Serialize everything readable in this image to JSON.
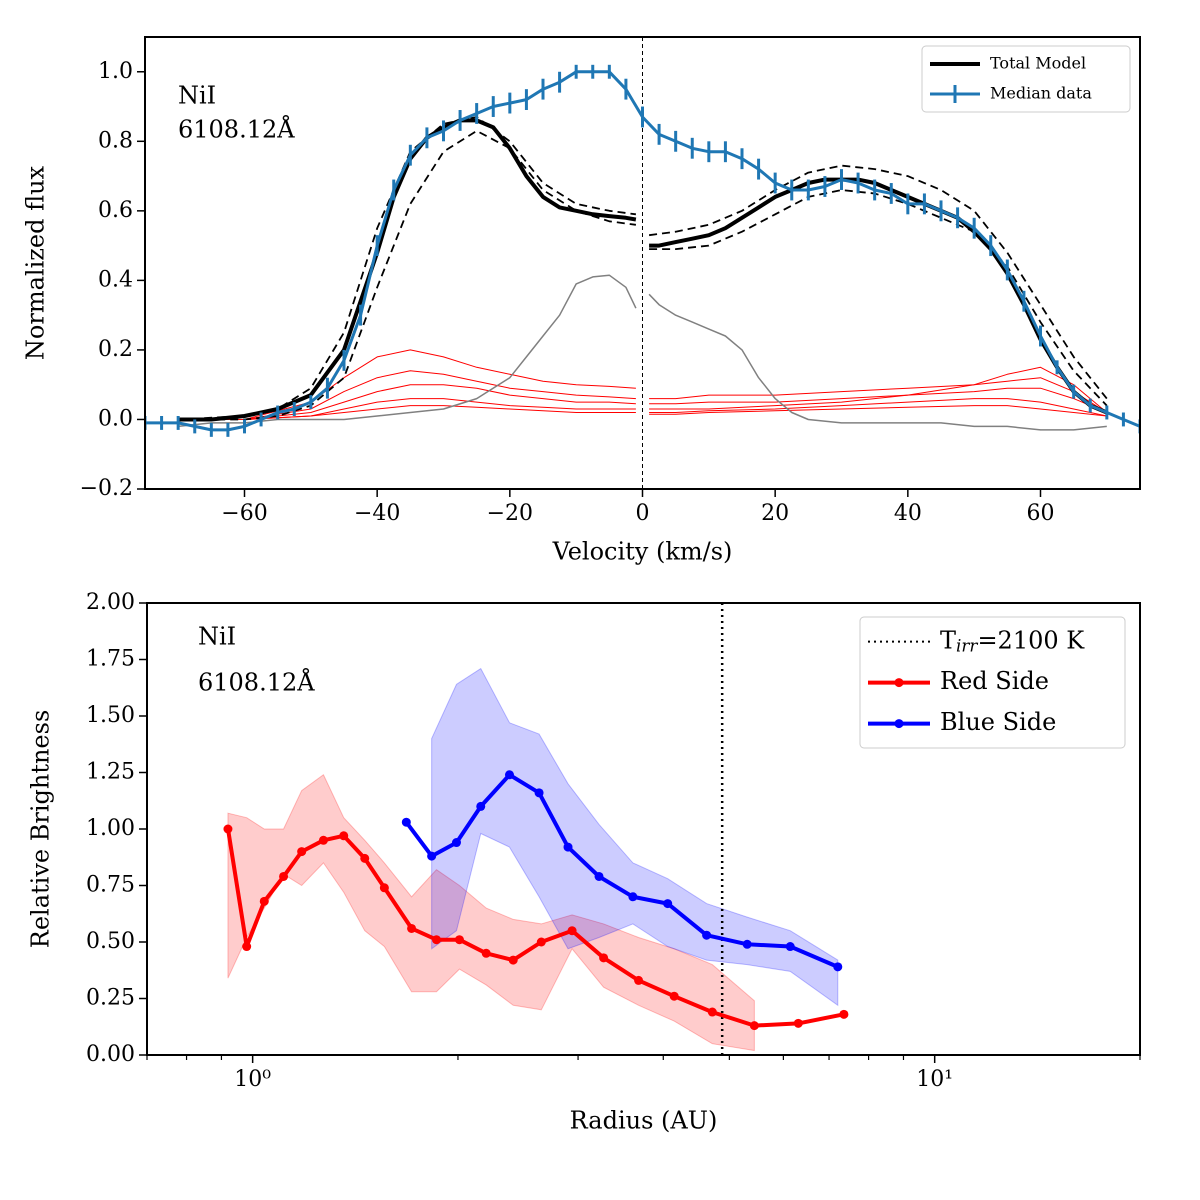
{
  "chart_data": [
    {
      "type": "line",
      "xlabel": "Velocity (km/s)",
      "ylabel": "Normalized flux",
      "annotation": [
        "NiI",
        "6108.12Å"
      ],
      "xlim": [
        -75,
        75
      ],
      "ylim": [
        -0.2,
        1.1
      ],
      "xticks": [
        {
          "value": -60,
          "label": "−60"
        },
        {
          "value": -40,
          "label": "−40"
        },
        {
          "value": -20,
          "label": "−20"
        },
        0,
        20,
        40,
        60
      ],
      "yticks": [
        {
          "value": -0.2,
          "label": "−0.2"
        },
        {
          "value": 0,
          "label": "0.0"
        },
        0.2,
        0.4,
        0.6,
        0.8,
        {
          "value": 1,
          "label": "1.0"
        }
      ],
      "vlines": [
        {
          "x": 0,
          "style": "dashed"
        }
      ],
      "legend": "upper right",
      "x": [
        -75,
        -72.5,
        -70,
        -67.5,
        -65,
        -62.5,
        -60,
        -57.5,
        -55,
        -52.5,
        -50,
        -47.5,
        -45,
        -42.5,
        -40,
        -37.5,
        -35,
        -32.5,
        -30,
        -27.5,
        -25,
        -22.5,
        -20,
        -17.5,
        -15,
        -12.5,
        -10,
        -7.5,
        -5,
        -2.5,
        0,
        2.5,
        5,
        7.5,
        10,
        12.5,
        15,
        17.5,
        20,
        22.5,
        25,
        27.5,
        30,
        32.5,
        35,
        37.5,
        40,
        42.5,
        45,
        47.5,
        50,
        52.5,
        55,
        57.5,
        60,
        62.5,
        65,
        67.5,
        70,
        72.5,
        75
      ],
      "series": [
        {
          "color": "#ff0000",
          "width": 1,
          "x": [
            -70,
            -60,
            -50,
            -45,
            -40,
            -35,
            -30,
            -25,
            -20,
            -15,
            -10,
            -5,
            -1,
            0,
            1,
            5,
            10,
            20,
            30,
            40,
            50,
            55,
            60,
            65,
            70
          ],
          "values": [
            0,
            0,
            0.05,
            0.12,
            0.18,
            0.2,
            0.18,
            0.15,
            0.13,
            0.11,
            0.1,
            0.095,
            0.09,
            null,
            0.03,
            0.03,
            0.03,
            0.04,
            0.05,
            0.07,
            0.1,
            0.13,
            0.15,
            0.1,
            0.02
          ]
        },
        {
          "color": "#ff0000",
          "width": 1,
          "x": [
            -70,
            -60,
            -50,
            -45,
            -40,
            -35,
            -30,
            -25,
            -20,
            -15,
            -10,
            -5,
            -1,
            0,
            1,
            5,
            10,
            20,
            30,
            40,
            50,
            55,
            60,
            65,
            70
          ],
          "values": [
            0,
            0,
            0.03,
            0.08,
            0.12,
            0.14,
            0.13,
            0.11,
            0.09,
            0.08,
            0.07,
            0.065,
            0.06,
            null,
            0.06,
            0.06,
            0.07,
            0.07,
            0.08,
            0.09,
            0.1,
            0.11,
            0.12,
            0.08,
            0.02
          ]
        },
        {
          "color": "#ff0000",
          "width": 1,
          "x": [
            -70,
            -60,
            -50,
            -45,
            -40,
            -35,
            -30,
            -25,
            -20,
            -15,
            -10,
            -5,
            -1,
            0,
            1,
            5,
            10,
            20,
            30,
            40,
            50,
            55,
            60,
            65,
            70
          ],
          "values": [
            0,
            0,
            0.02,
            0.05,
            0.08,
            0.1,
            0.1,
            0.09,
            0.07,
            0.06,
            0.05,
            0.05,
            0.045,
            null,
            0.045,
            0.045,
            0.05,
            0.05,
            0.06,
            0.07,
            0.08,
            0.09,
            0.09,
            0.06,
            0.02
          ]
        },
        {
          "color": "#ff0000",
          "width": 1,
          "x": [
            -70,
            -60,
            -50,
            -45,
            -40,
            -35,
            -30,
            -25,
            -20,
            -15,
            -10,
            -5,
            -1,
            0,
            1,
            5,
            10,
            20,
            30,
            40,
            50,
            55,
            60,
            65,
            70
          ],
          "values": [
            0,
            0,
            0.01,
            0.03,
            0.05,
            0.06,
            0.06,
            0.05,
            0.04,
            0.035,
            0.03,
            0.03,
            0.03,
            null,
            0.02,
            0.02,
            0.025,
            0.03,
            0.04,
            0.05,
            0.06,
            0.06,
            0.05,
            0.03,
            0.01
          ]
        },
        {
          "color": "#ff0000",
          "width": 1,
          "x": [
            -70,
            -60,
            -50,
            -45,
            -40,
            -35,
            -30,
            -25,
            -20,
            -15,
            -10,
            -5,
            -1,
            0,
            1,
            5,
            10,
            20,
            30,
            40,
            50,
            55,
            60,
            65,
            70
          ],
          "values": [
            0,
            0,
            0.01,
            0.02,
            0.03,
            0.04,
            0.04,
            0.035,
            0.03,
            0.025,
            0.02,
            0.02,
            0.02,
            null,
            0.015,
            0.015,
            0.02,
            0.025,
            0.03,
            0.035,
            0.04,
            0.04,
            0.03,
            0.02,
            0.01
          ]
        },
        {
          "color": "#808080",
          "width": 1.5,
          "x": [
            -70,
            -65,
            -60,
            -55,
            -50,
            -45,
            -40,
            -35,
            -30,
            -25,
            -20,
            -17.5,
            -15,
            -12.5,
            -10,
            -7.5,
            -5,
            -2.5,
            -1,
            0,
            1,
            2.5,
            5,
            7.5,
            10,
            12.5,
            15,
            17.5,
            20,
            22.5,
            25,
            30,
            35,
            40,
            45,
            50,
            55,
            60,
            65,
            70
          ],
          "values": [
            -0.02,
            -0.01,
            -0.01,
            0,
            0,
            0,
            0.01,
            0.02,
            0.03,
            0.06,
            0.12,
            0.18,
            0.24,
            0.3,
            0.39,
            0.41,
            0.415,
            0.38,
            0.32,
            null,
            0.36,
            0.33,
            0.3,
            0.28,
            0.26,
            0.24,
            0.2,
            0.12,
            0.06,
            0.02,
            0,
            -0.01,
            -0.01,
            -0.01,
            -0.01,
            -0.02,
            -0.02,
            -0.03,
            -0.03,
            -0.02
          ]
        },
        {
          "color": "#000000",
          "width": 1.8,
          "style": "dashed",
          "x": [
            -70,
            -60,
            -55,
            -50,
            -45,
            -40,
            -35,
            -30,
            -25,
            -20,
            -15,
            -10,
            -5,
            -1,
            0,
            1,
            5,
            10,
            15,
            20,
            25,
            30,
            35,
            40,
            45,
            50,
            55,
            60,
            65,
            70
          ],
          "values": [
            0,
            0.01,
            0.03,
            0.09,
            0.25,
            0.55,
            0.77,
            0.85,
            0.87,
            0.8,
            0.68,
            0.62,
            0.6,
            0.59,
            null,
            0.53,
            0.54,
            0.56,
            0.6,
            0.66,
            0.71,
            0.73,
            0.72,
            0.7,
            0.66,
            0.6,
            0.48,
            0.33,
            0.18,
            0.06
          ]
        },
        {
          "color": "#000000",
          "width": 1.8,
          "style": "dashed",
          "x": [
            -70,
            -60,
            -55,
            -50,
            -45,
            -40,
            -35,
            -30,
            -25,
            -20,
            -15,
            -10,
            -5,
            -1,
            0,
            1,
            5,
            10,
            15,
            20,
            25,
            30,
            35,
            40,
            45,
            50,
            55,
            60,
            65,
            70
          ],
          "values": [
            0,
            0,
            0.01,
            0.04,
            0.12,
            0.38,
            0.62,
            0.77,
            0.83,
            0.78,
            0.66,
            0.6,
            0.57,
            0.56,
            null,
            0.49,
            0.49,
            0.5,
            0.54,
            0.59,
            0.64,
            0.66,
            0.65,
            0.62,
            0.58,
            0.54,
            0.44,
            0.28,
            0.14,
            0.04
          ]
        },
        {
          "name": "Total Model",
          "color": "#000000",
          "width": 4,
          "x": [
            -70,
            -65,
            -60,
            -55,
            -50,
            -45,
            -40,
            -37.5,
            -35,
            -32.5,
            -30,
            -27.5,
            -25,
            -22.5,
            -20,
            -17.5,
            -15,
            -12.5,
            -10,
            -7.5,
            -5,
            -2.5,
            -1,
            0,
            1,
            2.5,
            5,
            7.5,
            10,
            12.5,
            15,
            17.5,
            20,
            22.5,
            25,
            27.5,
            30,
            32.5,
            35,
            37.5,
            40,
            42.5,
            45,
            47.5,
            50,
            52.5,
            55,
            57.5,
            60,
            62.5,
            65,
            67.5,
            70
          ],
          "values": [
            0,
            0,
            0.01,
            0.03,
            0.07,
            0.2,
            0.48,
            0.64,
            0.75,
            0.81,
            0.84,
            0.86,
            0.86,
            0.84,
            0.78,
            0.7,
            0.64,
            0.61,
            0.6,
            0.59,
            0.585,
            0.58,
            0.575,
            null,
            0.5,
            0.5,
            0.51,
            0.52,
            0.53,
            0.55,
            0.58,
            0.61,
            0.64,
            0.66,
            0.68,
            0.69,
            0.69,
            0.69,
            0.68,
            0.66,
            0.64,
            0.62,
            0.6,
            0.58,
            0.54,
            0.49,
            0.42,
            0.33,
            0.23,
            0.15,
            0.08,
            0.04,
            0.02
          ]
        },
        {
          "name": "Median data",
          "color": "#1f77b4",
          "width": 3,
          "values": [
            -0.01,
            -0.01,
            -0.01,
            -0.02,
            -0.03,
            -0.03,
            -0.02,
            0,
            0.02,
            0.03,
            0.05,
            0.09,
            0.17,
            0.3,
            0.5,
            0.66,
            0.76,
            0.81,
            0.83,
            0.86,
            0.88,
            0.9,
            0.91,
            0.92,
            0.95,
            0.97,
            1,
            1,
            1,
            0.95,
            0.87,
            0.82,
            0.8,
            0.78,
            0.77,
            0.77,
            0.75,
            0.72,
            0.68,
            0.66,
            0.66,
            0.67,
            0.69,
            0.68,
            0.66,
            0.65,
            0.62,
            0.62,
            0.6,
            0.58,
            0.55,
            0.5,
            0.43,
            0.34,
            0.24,
            0.15,
            0.08,
            0.04,
            0.02,
            0,
            -0.02
          ],
          "errors": [
            0.02,
            0.02,
            0.02,
            0.02,
            0.02,
            0.02,
            0.02,
            0.02,
            0.02,
            0.02,
            0.02,
            0.03,
            0.03,
            0.03,
            0.03,
            0.03,
            0.03,
            0.03,
            0.03,
            0.03,
            0.03,
            0.03,
            0.03,
            0.03,
            0.03,
            0.03,
            0.02,
            0.02,
            0.02,
            0.03,
            0.03,
            0.03,
            0.03,
            0.03,
            0.03,
            0.03,
            0.03,
            0.03,
            0.03,
            0.03,
            0.03,
            0.03,
            0.03,
            0.03,
            0.03,
            0.03,
            0.03,
            0.03,
            0.03,
            0.03,
            0.03,
            0.03,
            0.03,
            0.03,
            0.03,
            0.02,
            0.02,
            0.02,
            0.02,
            0.02,
            0.02
          ]
        }
      ]
    },
    {
      "type": "line",
      "xlog": true,
      "xlabel": "Radius (AU)",
      "ylabel": "Relative Brightness",
      "annotation": [
        "NiI",
        "6108.12Å"
      ],
      "xlim": [
        0.7,
        20
      ],
      "ylim": [
        0,
        2
      ],
      "xticks": [
        {
          "value": 1,
          "label": "10⁰"
        },
        {
          "value": 10,
          "label": "10¹"
        }
      ],
      "xminorticks": [
        0.7,
        0.8,
        0.9,
        2,
        3,
        4,
        5,
        6,
        7,
        8,
        9,
        20
      ],
      "yticks": [
        {
          "value": 0,
          "label": "0.00"
        },
        {
          "value": 0.25,
          "label": "0.25"
        },
        {
          "value": 0.5,
          "label": "0.50"
        },
        {
          "value": 0.75,
          "label": "0.75"
        },
        {
          "value": 1,
          "label": "1.00"
        },
        {
          "value": 1.25,
          "label": "1.25"
        },
        {
          "value": 1.5,
          "label": "1.50"
        },
        {
          "value": 1.75,
          "label": "1.75"
        },
        {
          "value": 2,
          "label": "2.00"
        }
      ],
      "vlines": [
        {
          "x": 4.88,
          "style": "dotted",
          "label": [
            "T",
            "irr",
            "=2100 K"
          ]
        }
      ],
      "legend": "upper right",
      "series": [
        {
          "name": "Red Side",
          "color": "#ff0000",
          "width": 4,
          "marker": true,
          "x": [
            0.92,
            0.98,
            1.04,
            1.11,
            1.18,
            1.27,
            1.36,
            1.46,
            1.56,
            1.71,
            1.86,
            2.01,
            2.2,
            2.41,
            2.65,
            2.94,
            3.27,
            3.68,
            4.15,
            4.72,
            5.44,
            6.31,
            7.36
          ],
          "values": [
            1,
            0.48,
            0.68,
            0.79,
            0.9,
            0.95,
            0.97,
            0.87,
            0.74,
            0.56,
            0.51,
            0.51,
            0.45,
            0.42,
            0.5,
            0.55,
            0.43,
            0.33,
            0.26,
            0.19,
            0.13,
            0.14,
            0.18
          ],
          "upper": [
            1.07,
            1.05,
            1,
            1,
            1.17,
            1.24,
            1.05,
            0.95,
            0.85,
            0.7,
            0.82,
            0.75,
            0.65,
            0.6,
            0.58,
            0.62,
            0.58,
            0.52,
            0.47,
            0.4,
            0.24,
            null,
            null
          ],
          "lower": [
            0.34,
            0.52,
            0.65,
            0.8,
            0.75,
            0.85,
            0.72,
            0.55,
            0.48,
            0.28,
            0.28,
            0.38,
            0.31,
            0.22,
            0.2,
            0.47,
            0.3,
            0.22,
            0.15,
            0.05,
            0.02,
            null,
            null
          ]
        },
        {
          "name": "Blue Side",
          "color": "#0000ff",
          "width": 4,
          "marker": true,
          "x": [
            1.68,
            1.83,
            1.99,
            2.16,
            2.38,
            2.63,
            2.9,
            3.22,
            3.61,
            4.06,
            4.63,
            5.31,
            6.14,
            7.21
          ],
          "values": [
            1.03,
            0.88,
            0.94,
            1.1,
            1.24,
            1.16,
            0.92,
            0.79,
            0.7,
            0.67,
            0.53,
            0.49,
            0.48,
            0.39
          ],
          "upper": [
            null,
            1.4,
            1.64,
            1.71,
            1.47,
            1.42,
            1.2,
            1.02,
            0.85,
            0.78,
            0.67,
            0.61,
            0.55,
            0.42
          ],
          "lower": [
            null,
            0.47,
            0.55,
            0.98,
            0.92,
            0.7,
            0.47,
            0.52,
            0.58,
            0.48,
            0.42,
            0.4,
            0.37,
            0.22
          ]
        }
      ]
    }
  ]
}
